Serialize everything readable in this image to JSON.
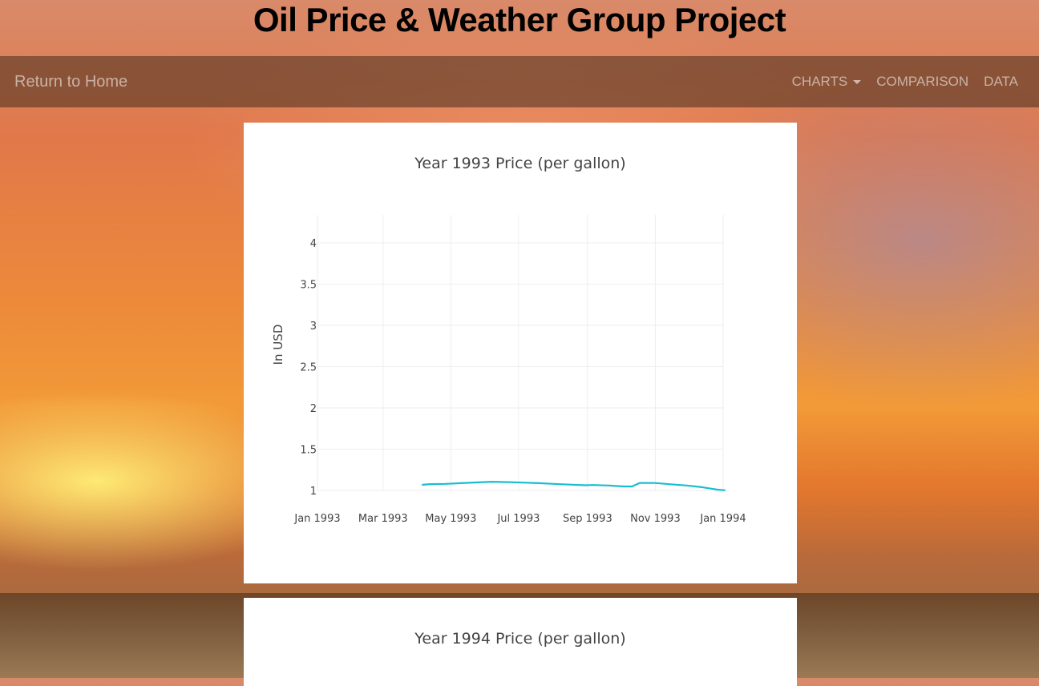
{
  "page": {
    "title": "Oil Price & Weather Group Project"
  },
  "navbar": {
    "home_label": "Return to Home",
    "items": [
      {
        "label": "CHARTS",
        "dropdown": true
      },
      {
        "label": "COMPARISON",
        "dropdown": false
      },
      {
        "label": "DATA",
        "dropdown": false
      }
    ]
  },
  "colors": {
    "series_line": "#17becf",
    "grid": "#eeeeee",
    "axis_text": "#444444"
  },
  "chart_data": [
    {
      "type": "line",
      "title": "Year 1993 Price (per gallon)",
      "xlabel": "",
      "ylabel": "In USD",
      "ylim": [
        1,
        4
      ],
      "yticks": [
        "1",
        "1.5",
        "2",
        "2.5",
        "3",
        "3.5",
        "4"
      ],
      "xticks": [
        "Jan 1993",
        "Mar 1993",
        "May 1993",
        "Jul 1993",
        "Sep 1993",
        "Nov 1993",
        "Jan 1994"
      ],
      "xtick_dates": [
        "1993-01-01",
        "1993-03-01",
        "1993-05-01",
        "1993-07-01",
        "1993-09-01",
        "1993-11-01",
        "1994-01-01"
      ],
      "grid": true,
      "series": [
        {
          "x": [
            "1993-04-05",
            "1993-04-12",
            "1993-04-26",
            "1993-05-10",
            "1993-05-24",
            "1993-06-07",
            "1993-06-21",
            "1993-07-05",
            "1993-07-19",
            "1993-08-02",
            "1993-08-16",
            "1993-08-30",
            "1993-09-06",
            "1993-09-20",
            "1993-10-04",
            "1993-10-11",
            "1993-10-18",
            "1993-11-01",
            "1993-11-15",
            "1993-11-29",
            "1993-12-13",
            "1993-12-27",
            "1994-01-03"
          ],
          "y": [
            1.068,
            1.077,
            1.08,
            1.088,
            1.097,
            1.106,
            1.101,
            1.095,
            1.088,
            1.08,
            1.071,
            1.063,
            1.066,
            1.06,
            1.049,
            1.049,
            1.091,
            1.09,
            1.075,
            1.06,
            1.04,
            1.01,
            1.002
          ]
        }
      ]
    },
    {
      "type": "line",
      "title": "Year 1994 Price (per gallon)"
    }
  ]
}
